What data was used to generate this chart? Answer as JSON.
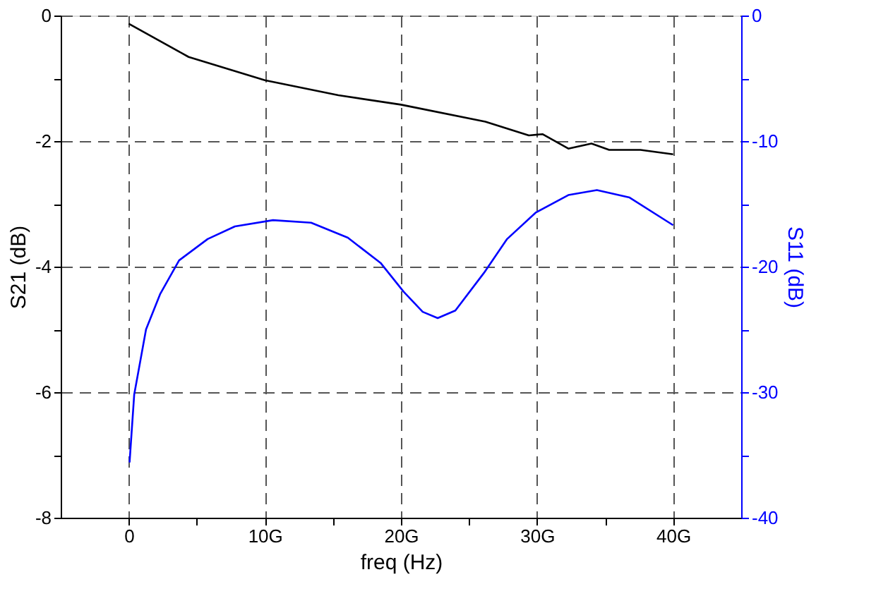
{
  "chart_data": {
    "type": "line",
    "xlabel": "freq (Hz)",
    "ylabel": "S21 (dB)",
    "y2label": "S11 (dB)",
    "xlim": [
      -5,
      45
    ],
    "xticks": [
      {
        "value": 0,
        "label": "0"
      },
      {
        "value": 5,
        "label": null
      },
      {
        "value": 10,
        "label": "10G"
      },
      {
        "value": 15,
        "label": null
      },
      {
        "value": 20,
        "label": "20G"
      },
      {
        "value": 25,
        "label": null
      },
      {
        "value": 30,
        "label": "30G"
      },
      {
        "value": 35,
        "label": null
      },
      {
        "value": 40,
        "label": "40G"
      }
    ],
    "ylim": [
      -8,
      0
    ],
    "yticks": [
      -8,
      {
        "value": -7,
        "label": null
      },
      -6,
      {
        "value": -5,
        "label": null
      },
      -4,
      {
        "value": -3,
        "label": null
      },
      -2,
      {
        "value": -1,
        "label": null
      },
      0
    ],
    "y2lim": [
      -40,
      0
    ],
    "y2ticks": [
      -40,
      {
        "value": -35,
        "label": null
      },
      -30,
      {
        "value": -25,
        "label": null
      },
      -20,
      {
        "value": -15,
        "label": null
      },
      -10,
      {
        "value": -5,
        "label": null
      },
      0
    ],
    "grid": true,
    "line_style": "solid",
    "marker": "none",
    "series": [
      {
        "color": "#000000",
        "x": [
          0,
          4.4,
          10,
          15.4,
          20,
          26.2,
          29.4,
          30.4,
          32.3,
          34,
          35.3,
          37.6,
          40
        ],
        "values": [
          -0.13,
          -0.66,
          -1.03,
          -1.27,
          -1.42,
          -1.69,
          -1.91,
          -1.89,
          -2.12,
          -2.04,
          -2.14,
          -2.14,
          -2.21
        ]
      },
      {
        "color": "#0000ff",
        "axis": "y2",
        "x": [
          0.06,
          0.4,
          1.27,
          2.3,
          3.7,
          5.8,
          7.8,
          10.6,
          13.4,
          16.1,
          18.5,
          20.2,
          21.6,
          22.7,
          24,
          26.1,
          27.8,
          29.9,
          32.3,
          34.4,
          36.8,
          40
        ],
        "values": [
          -35.6,
          -30.2,
          -25,
          -22.2,
          -19.5,
          -17.8,
          -16.8,
          -16.3,
          -16.5,
          -17.7,
          -19.7,
          -22,
          -23.6,
          -24.1,
          -23.5,
          -20.5,
          -17.8,
          -15.7,
          -14.3,
          -13.9,
          -14.5,
          -16.7
        ]
      }
    ]
  }
}
